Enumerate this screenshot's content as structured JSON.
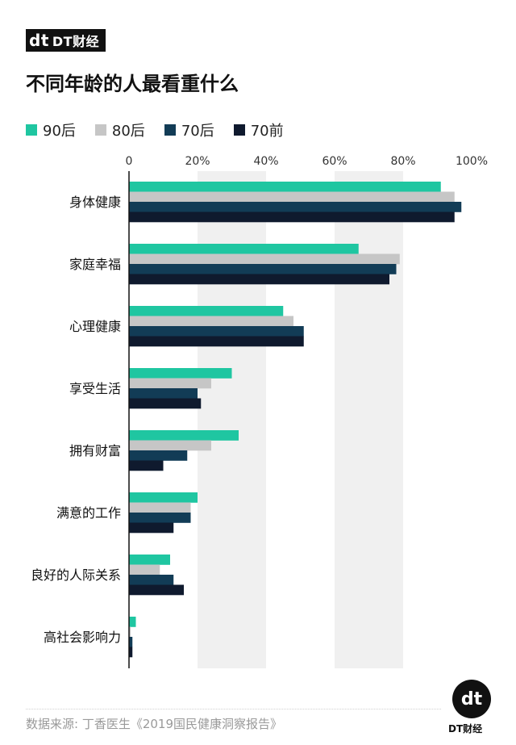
{
  "brand": {
    "mark": "dt",
    "name": "DT财经"
  },
  "chart_data": {
    "type": "bar",
    "orientation": "horizontal",
    "title": "不同年龄的人最看重什么",
    "categories": [
      "身体健康",
      "家庭幸福",
      "心理健康",
      "享受生活",
      "拥有财富",
      "满意的工作",
      "良好的人际关系",
      "高社会影响力"
    ],
    "series": [
      {
        "name": "90后",
        "color": "#1fc6a1",
        "values": [
          91,
          67,
          45,
          30,
          32,
          20,
          12,
          2
        ]
      },
      {
        "name": "80后",
        "color": "#c6c6c6",
        "values": [
          95,
          79,
          48,
          24,
          24,
          18,
          9,
          0.5
        ]
      },
      {
        "name": "70后",
        "color": "#123c56",
        "values": [
          97,
          78,
          51,
          20,
          17,
          18,
          13,
          1
        ]
      },
      {
        "name": "70前",
        "color": "#0f1a2e",
        "values": [
          95,
          76,
          51,
          21,
          10,
          13,
          16,
          1
        ]
      }
    ],
    "xlim": [
      0,
      100
    ],
    "tick_labels": [
      "0",
      "20%",
      "40%",
      "60%",
      "80%",
      "100%"
    ],
    "legend_position": "top-left"
  },
  "source": "数据来源: 丁香医生《2019国民健康洞察报告》"
}
